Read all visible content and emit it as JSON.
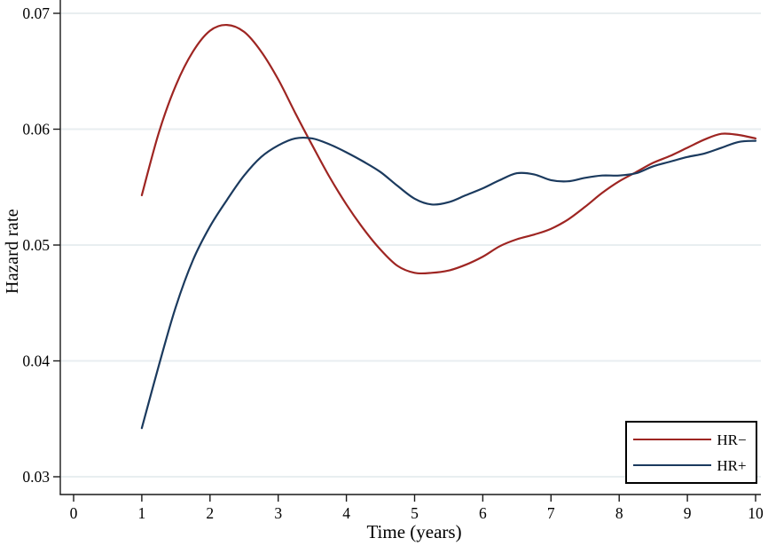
{
  "chart_data": {
    "type": "line",
    "title": "",
    "xlabel": "Time (years)",
    "ylabel": "Hazard rate",
    "xlim": [
      0,
      10
    ],
    "ylim": [
      0.0285,
      0.0712
    ],
    "x_ticks": [
      0,
      1,
      2,
      3,
      4,
      5,
      6,
      7,
      8,
      9,
      10
    ],
    "y_ticks": [
      0.03,
      0.04,
      0.05,
      0.06,
      0.07
    ],
    "y_tick_labels": [
      "0.03",
      "0.04",
      "0.05",
      "0.06",
      "0.07"
    ],
    "grid": "horizontal gridlines only",
    "legend_position": "bottom-right inside box",
    "series": [
      {
        "name": "HR−",
        "color": "#9e2522",
        "x": [
          1,
          1.25,
          1.5,
          1.75,
          2,
          2.25,
          2.5,
          2.75,
          3,
          3.25,
          3.5,
          3.75,
          4,
          4.25,
          4.5,
          4.75,
          5,
          5.25,
          5.5,
          5.75,
          6,
          6.25,
          6.5,
          6.75,
          7,
          7.25,
          7.5,
          7.75,
          8,
          8.25,
          8.5,
          8.75,
          9,
          9.25,
          9.5,
          9.75,
          10
        ],
        "y": [
          0.0543,
          0.0597,
          0.0638,
          0.0667,
          0.0685,
          0.069,
          0.0684,
          0.0667,
          0.0643,
          0.0614,
          0.0586,
          0.0559,
          0.0535,
          0.0514,
          0.0496,
          0.0482,
          0.0476,
          0.0476,
          0.0478,
          0.0483,
          0.049,
          0.0499,
          0.0505,
          0.0509,
          0.0514,
          0.0522,
          0.0533,
          0.0545,
          0.0555,
          0.0563,
          0.0571,
          0.0577,
          0.0584,
          0.0591,
          0.0596,
          0.0595,
          0.0592
        ]
      },
      {
        "name": "HR+",
        "color": "#1b3a5e",
        "x": [
          1,
          1.25,
          1.5,
          1.75,
          2,
          2.25,
          2.5,
          2.75,
          3,
          3.25,
          3.5,
          3.75,
          4,
          4.25,
          4.5,
          4.75,
          5,
          5.25,
          5.5,
          5.75,
          6,
          6.25,
          6.5,
          6.75,
          7,
          7.25,
          7.5,
          7.75,
          8,
          8.25,
          8.5,
          8.75,
          9,
          9.25,
          9.5,
          9.75,
          10
        ],
        "y": [
          0.0342,
          0.0396,
          0.0447,
          0.0487,
          0.0516,
          0.0539,
          0.056,
          0.0576,
          0.0586,
          0.0592,
          0.0592,
          0.0587,
          0.058,
          0.0572,
          0.0563,
          0.0551,
          0.054,
          0.0535,
          0.0537,
          0.0543,
          0.0549,
          0.0556,
          0.0562,
          0.0561,
          0.0556,
          0.0555,
          0.0558,
          0.056,
          0.056,
          0.0562,
          0.0568,
          0.0572,
          0.0576,
          0.0579,
          0.0584,
          0.0589,
          0.059
        ]
      }
    ]
  },
  "colors": {
    "background": "#ffffff",
    "grid": "#e8eef0",
    "axis": "#1a1a1a",
    "text": "#000000"
  }
}
